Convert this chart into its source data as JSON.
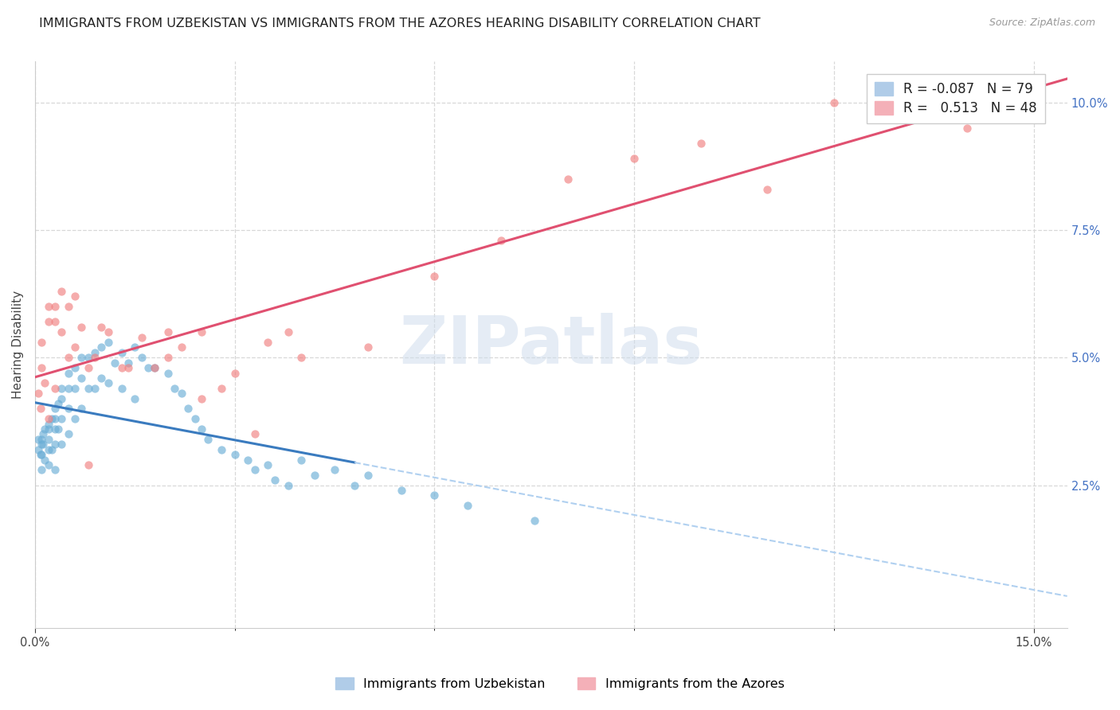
{
  "title": "IMMIGRANTS FROM UZBEKISTAN VS IMMIGRANTS FROM THE AZORES HEARING DISABILITY CORRELATION CHART",
  "source": "Source: ZipAtlas.com",
  "ylabel": "Hearing Disability",
  "xlim": [
    0.0,
    0.155
  ],
  "ylim": [
    -0.003,
    0.108
  ],
  "y_tick_pos": [
    0.025,
    0.05,
    0.075,
    0.1
  ],
  "y_tick_lab": [
    "2.5%",
    "5.0%",
    "7.5%",
    "10.0%"
  ],
  "x_tick_positions": [
    0.0,
    0.15
  ],
  "x_tick_labels": [
    "0.0%",
    "15.0%"
  ],
  "x_grid_lines": [
    0.0,
    0.03,
    0.06,
    0.09,
    0.12,
    0.15
  ],
  "watermark_text": "ZIPatlas",
  "blue_scatter_x": [
    0.0005,
    0.0005,
    0.0008,
    0.001,
    0.001,
    0.001,
    0.001,
    0.0012,
    0.0012,
    0.0015,
    0.0015,
    0.002,
    0.002,
    0.002,
    0.002,
    0.002,
    0.0025,
    0.0025,
    0.003,
    0.003,
    0.003,
    0.003,
    0.003,
    0.0035,
    0.0035,
    0.004,
    0.004,
    0.004,
    0.004,
    0.005,
    0.005,
    0.005,
    0.005,
    0.006,
    0.006,
    0.006,
    0.007,
    0.007,
    0.007,
    0.008,
    0.008,
    0.009,
    0.009,
    0.01,
    0.01,
    0.011,
    0.011,
    0.012,
    0.013,
    0.013,
    0.014,
    0.015,
    0.015,
    0.016,
    0.017,
    0.018,
    0.02,
    0.021,
    0.022,
    0.023,
    0.024,
    0.025,
    0.026,
    0.028,
    0.03,
    0.032,
    0.033,
    0.035,
    0.036,
    0.038,
    0.04,
    0.042,
    0.045,
    0.048,
    0.05,
    0.055,
    0.06,
    0.065,
    0.075
  ],
  "blue_scatter_y": [
    0.034,
    0.032,
    0.031,
    0.034,
    0.033,
    0.031,
    0.028,
    0.035,
    0.033,
    0.036,
    0.03,
    0.037,
    0.036,
    0.034,
    0.032,
    0.029,
    0.038,
    0.032,
    0.04,
    0.038,
    0.036,
    0.033,
    0.028,
    0.041,
    0.036,
    0.044,
    0.042,
    0.038,
    0.033,
    0.047,
    0.044,
    0.04,
    0.035,
    0.048,
    0.044,
    0.038,
    0.05,
    0.046,
    0.04,
    0.05,
    0.044,
    0.051,
    0.044,
    0.052,
    0.046,
    0.053,
    0.045,
    0.049,
    0.051,
    0.044,
    0.049,
    0.052,
    0.042,
    0.05,
    0.048,
    0.048,
    0.047,
    0.044,
    0.043,
    0.04,
    0.038,
    0.036,
    0.034,
    0.032,
    0.031,
    0.03,
    0.028,
    0.029,
    0.026,
    0.025,
    0.03,
    0.027,
    0.028,
    0.025,
    0.027,
    0.024,
    0.023,
    0.021,
    0.018
  ],
  "pink_scatter_x": [
    0.0005,
    0.0008,
    0.001,
    0.001,
    0.0015,
    0.002,
    0.002,
    0.002,
    0.003,
    0.003,
    0.003,
    0.004,
    0.004,
    0.005,
    0.005,
    0.006,
    0.006,
    0.007,
    0.008,
    0.009,
    0.01,
    0.011,
    0.013,
    0.014,
    0.016,
    0.018,
    0.02,
    0.022,
    0.025,
    0.028,
    0.03,
    0.033,
    0.035,
    0.038,
    0.04,
    0.05,
    0.06,
    0.07,
    0.08,
    0.09,
    0.1,
    0.11,
    0.12,
    0.13,
    0.14,
    0.02,
    0.025,
    0.008
  ],
  "pink_scatter_y": [
    0.043,
    0.04,
    0.048,
    0.053,
    0.045,
    0.057,
    0.06,
    0.038,
    0.06,
    0.057,
    0.044,
    0.063,
    0.055,
    0.06,
    0.05,
    0.062,
    0.052,
    0.056,
    0.048,
    0.05,
    0.056,
    0.055,
    0.048,
    0.048,
    0.054,
    0.048,
    0.05,
    0.052,
    0.055,
    0.044,
    0.047,
    0.035,
    0.053,
    0.055,
    0.05,
    0.052,
    0.066,
    0.073,
    0.085,
    0.089,
    0.092,
    0.083,
    0.1,
    0.104,
    0.095,
    0.055,
    0.042,
    0.029
  ],
  "scatter_size": 55,
  "scatter_alpha": 0.65,
  "blue_dot_color": "#6baed6",
  "pink_dot_color": "#f08080",
  "blue_line_color": "#3a7bbf",
  "pink_line_color": "#e05070",
  "blue_dash_color": "#b0d0f0",
  "grid_color": "#d8d8d8",
  "background_color": "#ffffff",
  "title_fontsize": 11.5,
  "tick_fontsize": 10.5,
  "ylabel_fontsize": 11,
  "legend_fontsize": 12,
  "blue_line_split_x": 0.048,
  "r_blue": -0.087,
  "n_blue": 79,
  "r_pink": 0.513,
  "n_pink": 48,
  "legend_label_blue": "R = -0.087   N = 79",
  "legend_label_pink": "R =   0.513   N = 48",
  "bottom_legend_blue": "Immigrants from Uzbekistan",
  "bottom_legend_pink": "Immigrants from the Azores"
}
